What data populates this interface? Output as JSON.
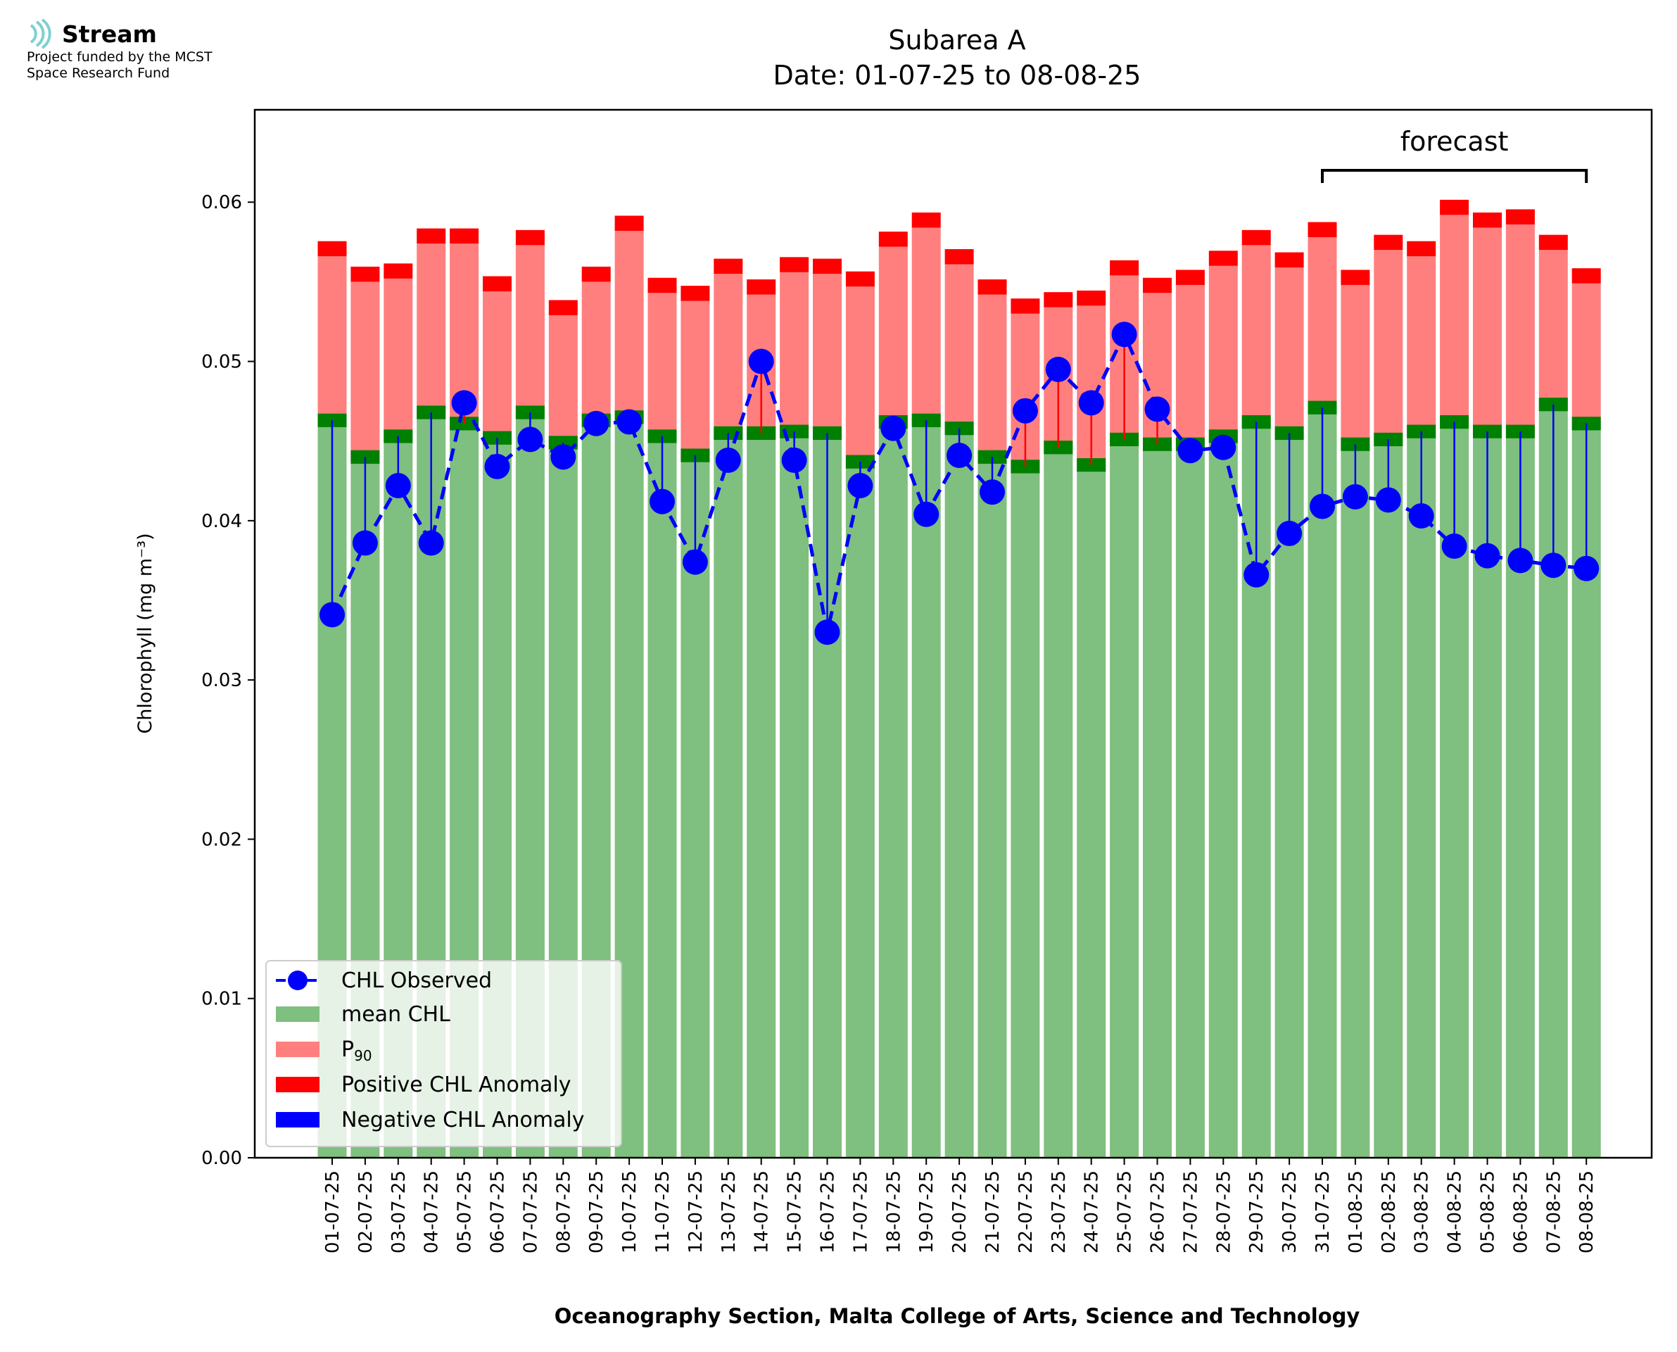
{
  "logo": {
    "name": "Stream",
    "line1": "Project funded by the MCST",
    "line2": "Space Research Fund"
  },
  "colors": {
    "mean": "#7fbf7f",
    "mean_edge": "#008000",
    "p90": "#ff7f7f",
    "positive": "#ff0000",
    "negative": "#0000ff",
    "observed": "#0000ff"
  },
  "chart_data": {
    "type": "bar",
    "title": "Subarea A",
    "subtitle": "Date: 01-07-25 to 08-08-25",
    "xlabel": "Oceanography Section, Malta College of Arts, Science and Technology",
    "ylabel": "Chlorophyll (mg m⁻³)",
    "ylim": [
      0,
      0.0658
    ],
    "yticks": [
      "0.00",
      "0.01",
      "0.02",
      "0.03",
      "0.04",
      "0.05",
      "0.06"
    ],
    "forecast_label": "forecast",
    "forecast_range": [
      "31-07-25",
      "08-08-25"
    ],
    "legend_position": "lower-left",
    "legend": [
      "CHL Observed",
      "mean CHL",
      "P90",
      "Positive CHL Anomaly",
      "Negative CHL Anomaly"
    ],
    "categories": [
      "01-07-25",
      "02-07-25",
      "03-07-25",
      "04-07-25",
      "05-07-25",
      "06-07-25",
      "07-07-25",
      "08-07-25",
      "09-07-25",
      "10-07-25",
      "11-07-25",
      "12-07-25",
      "13-07-25",
      "14-07-25",
      "15-07-25",
      "16-07-25",
      "17-07-25",
      "18-07-25",
      "19-07-25",
      "20-07-25",
      "21-07-25",
      "22-07-25",
      "23-07-25",
      "24-07-25",
      "25-07-25",
      "26-07-25",
      "27-07-25",
      "28-07-25",
      "29-07-25",
      "30-07-25",
      "31-07-25",
      "01-08-25",
      "02-08-25",
      "03-08-25",
      "04-08-25",
      "05-08-25",
      "06-08-25",
      "07-08-25",
      "08-08-25"
    ],
    "series": [
      {
        "name": "mean CHL",
        "values": [
          0.0463,
          0.044,
          0.0453,
          0.0468,
          0.0461,
          0.0452,
          0.0468,
          0.0449,
          0.0463,
          0.0465,
          0.0453,
          0.0441,
          0.0455,
          0.0455,
          0.0456,
          0.0455,
          0.0437,
          0.0462,
          0.0463,
          0.0458,
          0.044,
          0.0434,
          0.0446,
          0.0435,
          0.0451,
          0.0448,
          0.0448,
          0.0453,
          0.0462,
          0.0455,
          0.0471,
          0.0448,
          0.0451,
          0.0456,
          0.0462,
          0.0456,
          0.0456,
          0.0473,
          0.0461
        ]
      },
      {
        "name": "P90",
        "values": [
          0.0566,
          0.055,
          0.0552,
          0.0574,
          0.0574,
          0.0544,
          0.0573,
          0.0529,
          0.055,
          0.0582,
          0.0543,
          0.0538,
          0.0555,
          0.0542,
          0.0556,
          0.0555,
          0.0547,
          0.0572,
          0.0584,
          0.0561,
          0.0542,
          0.053,
          0.0534,
          0.0535,
          0.0554,
          0.0543,
          0.0548,
          0.056,
          0.0573,
          0.0559,
          0.0578,
          0.0548,
          0.057,
          0.0566,
          0.0592,
          0.0584,
          0.0586,
          0.057,
          0.0549
        ]
      },
      {
        "name": "CHL Observed",
        "values": [
          0.0341,
          0.0386,
          0.0422,
          0.0386,
          0.0474,
          0.0434,
          0.0451,
          0.044,
          0.0461,
          0.0462,
          0.0412,
          0.0374,
          0.0438,
          0.05,
          0.0438,
          0.033,
          0.0422,
          0.0458,
          0.0404,
          0.0441,
          0.0418,
          0.0469,
          0.0495,
          0.0474,
          0.0517,
          0.047,
          0.0444,
          0.0446,
          0.0366,
          0.0392,
          0.0409,
          0.0415,
          0.0413,
          0.0403,
          0.0384,
          0.0378,
          0.0375,
          0.0372,
          0.037
        ]
      }
    ]
  }
}
